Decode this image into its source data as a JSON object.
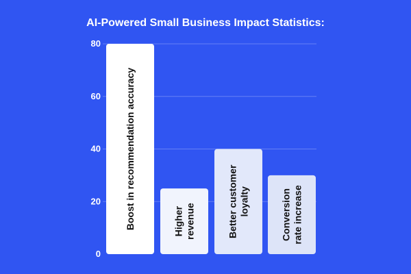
{
  "chart_data": {
    "type": "bar",
    "title": "AI-Powered Small Business Impact Statistics:",
    "xlabel": "",
    "ylabel": "",
    "ylim": [
      0,
      80
    ],
    "yticks": [
      0,
      20,
      40,
      60,
      80
    ],
    "grid": true,
    "categories": [
      "Boost in recommendation accuracy",
      "Higher revenue",
      "Better customer loyalty",
      "Conversion rate increase"
    ],
    "category_lines": [
      [
        "Boost in recommendation accuracy"
      ],
      [
        "Higher",
        "revenue"
      ],
      [
        "Better customer",
        "loyalty"
      ],
      [
        "Conversion",
        "rate increase"
      ]
    ],
    "values": [
      80,
      25,
      40,
      30
    ]
  },
  "colors": {
    "background": "#3055f2",
    "bar_fills": [
      "#ffffff",
      "#f1f4fd",
      "#e2e8fa",
      "#dde4f8"
    ],
    "gridline": "#6680f5",
    "text_light": "#ffffff",
    "text_dark": "#111111"
  }
}
